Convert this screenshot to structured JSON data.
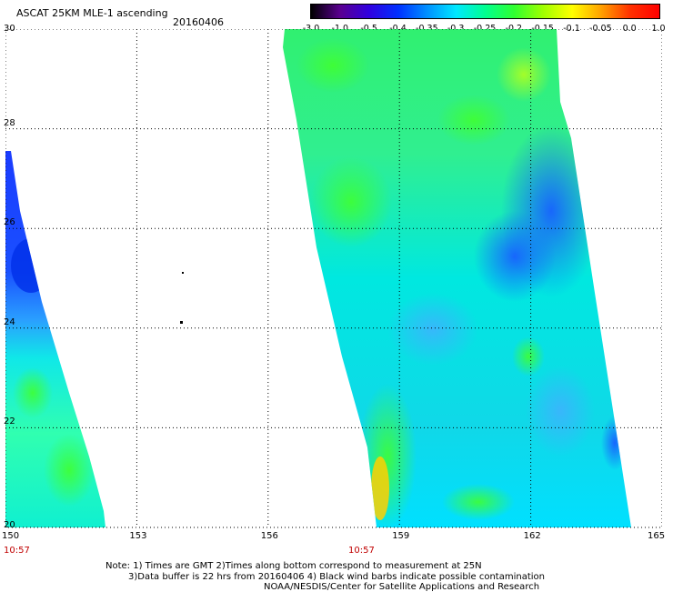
{
  "header": {
    "title": "ASCAT 25KM MLE-1 ascending",
    "date": "20160406"
  },
  "colorbar": {
    "labels": [
      "-3.0",
      "-1.0",
      "-0.5",
      "-0.4",
      "-0.35",
      "-0.3",
      "-0.25",
      "-0.2",
      "-0.15",
      "-0.1",
      "-0.05",
      "0.0",
      "1.0"
    ],
    "colors": [
      "#000000",
      "#5a0090",
      "#3000e0",
      "#0030ff",
      "#0090ff",
      "#00e8ff",
      "#00ff90",
      "#30ff30",
      "#a0ff00",
      "#ffff00",
      "#ffa000",
      "#ff3000",
      "#ff0000"
    ]
  },
  "map": {
    "lon_labels": [
      "150",
      "153",
      "156",
      "159",
      "162",
      "165"
    ],
    "lat_labels": [
      "20",
      "22",
      "24",
      "26",
      "28",
      "30"
    ],
    "lon_range": [
      150,
      165
    ],
    "lat_range": [
      20,
      30
    ],
    "grid": "dotted",
    "swath_times": [
      "10:57",
      "10:57"
    ]
  },
  "notes": {
    "line1": "Note: 1) Times are GMT 2)Times along bottom correspond to measurement at 25N",
    "line2": "3)Data buffer is 22 hrs from 20160406 4) Black wind barbs indicate possible contamination",
    "line3": "NOAA/NESDIS/Center for Satellite Applications and Research"
  }
}
